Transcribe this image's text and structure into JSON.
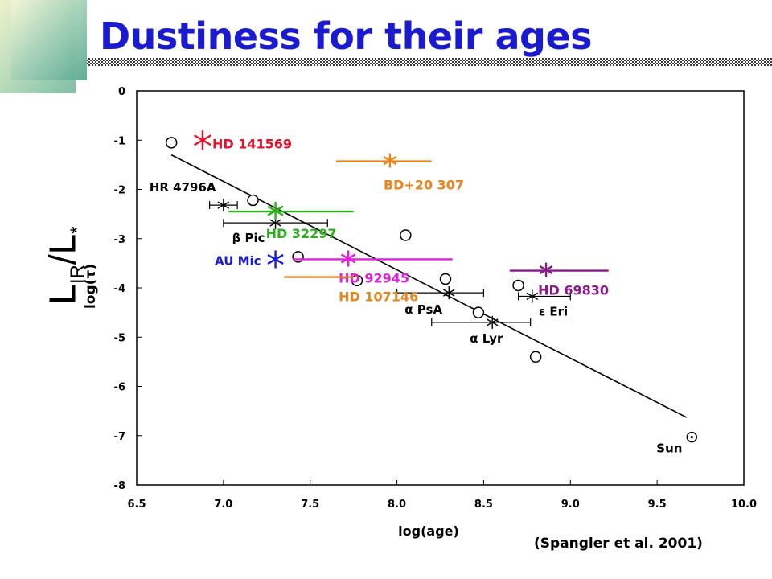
{
  "title": "Dustiness for their ages",
  "citation": "(Spangler et al. 2001)",
  "y_label": {
    "main": "L",
    "sub": "IR",
    "sep": "/",
    "main2": "L",
    "star": "*"
  },
  "colors": {
    "title": "#1a1ad0",
    "red": "#e8102a",
    "orange": "#e8841c",
    "green": "#2ab01a",
    "blue": "#1a1ad0",
    "magenta": "#e020d8",
    "purple": "#8a1a8a"
  },
  "chart_data": {
    "type": "scatter",
    "xlabel": "log(age)",
    "ylabel": "log(τ)",
    "xlim": [
      6.5,
      10.0
    ],
    "ylim": [
      -8,
      0
    ],
    "x_ticks": [
      "6.5",
      "7.0",
      "7.5",
      "8.0",
      "8.5",
      "9.0",
      "9.5",
      "10.0"
    ],
    "y_ticks": [
      "0",
      "-1",
      "-2",
      "-3",
      "-4",
      "-5",
      "-6",
      "-7",
      "-8"
    ],
    "fit_line": {
      "x": [
        6.7,
        9.67
      ],
      "y": [
        -1.3,
        -6.63
      ]
    },
    "circle_points": [
      {
        "x": 6.7,
        "y": -1.05
      },
      {
        "x": 7.17,
        "y": -2.22
      },
      {
        "x": 7.43,
        "y": -3.37
      },
      {
        "x": 7.77,
        "y": -3.85
      },
      {
        "x": 8.05,
        "y": -2.93
      },
      {
        "x": 8.28,
        "y": -3.82
      },
      {
        "x": 8.47,
        "y": -4.5
      },
      {
        "x": 8.7,
        "y": -3.95
      },
      {
        "x": 8.8,
        "y": -5.4
      }
    ],
    "star_points": [
      {
        "label": "HR 4796A",
        "x": 7.0,
        "y": -2.32,
        "xerr": [
          6.92,
          7.08
        ]
      },
      {
        "label": "β Pic",
        "x": 7.3,
        "y": -2.68,
        "xerr": [
          7.0,
          7.6
        ]
      },
      {
        "label": "α PsA",
        "x": 8.3,
        "y": -4.1,
        "xerr": [
          8.0,
          8.5
        ]
      },
      {
        "label": "α Lyr",
        "x": 8.55,
        "y": -4.7,
        "xerr": [
          8.2,
          8.77
        ]
      },
      {
        "label": "ε Eri",
        "x": 8.78,
        "y": -4.17,
        "xerr": [
          8.7,
          9.0
        ]
      }
    ],
    "sun": {
      "label": "Sun",
      "x": 9.7,
      "y": -7.03
    },
    "added_stars": [
      {
        "label": "HD 141569",
        "color": "red",
        "x": 6.88,
        "y": -1.0
      },
      {
        "label": "BD+20 307",
        "color": "orange",
        "x": 7.96,
        "y": -1.43,
        "xerr": [
          7.65,
          8.2
        ]
      },
      {
        "label": "HD 32297",
        "color": "green",
        "x": 7.3,
        "y": -2.45,
        "xerr": [
          7.03,
          7.75
        ]
      },
      {
        "label": "AU Mic",
        "color": "blue",
        "x": 7.3,
        "y": -3.42
      },
      {
        "label": "HD 92945",
        "color": "magenta",
        "x": 7.72,
        "y": -3.42,
        "xerr": [
          7.4,
          8.32
        ]
      },
      {
        "label": "HD 107146",
        "color": "orange",
        "x": 7.72,
        "y": -3.78,
        "xerr": [
          7.35,
          7.75
        ]
      },
      {
        "label": "HD 69830",
        "color": "purple",
        "x": 8.86,
        "y": -3.65,
        "xerr": [
          8.65,
          9.22
        ]
      }
    ]
  }
}
